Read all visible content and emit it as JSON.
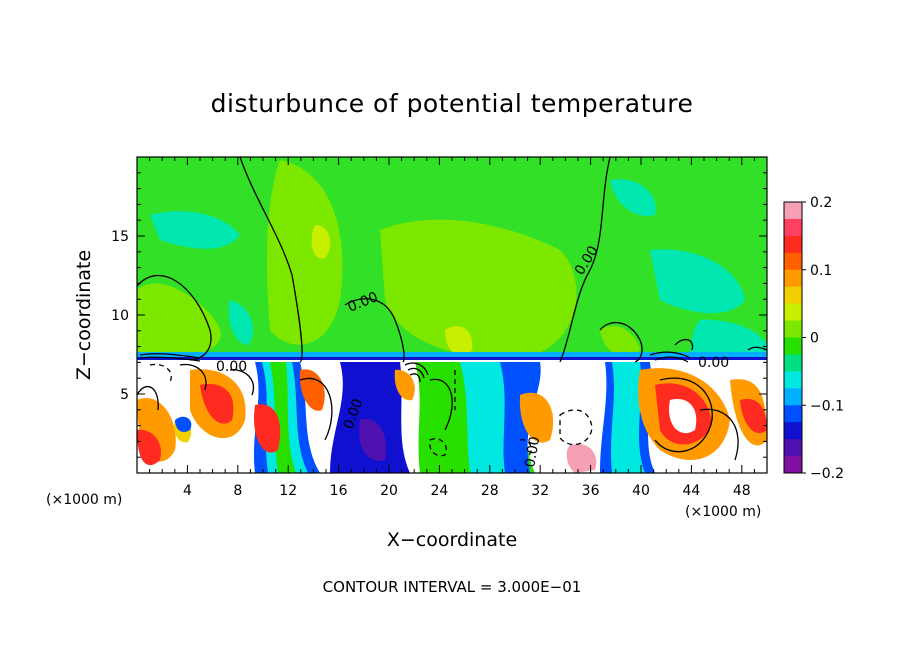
{
  "chart_data": {
    "type": "heatmap",
    "title": "disturbunce of potential temperature",
    "xlabel": "X−coordinate",
    "ylabel": "Z−coordinate",
    "x_unit_left": "(×1000 m)",
    "x_unit_right": "(×1000 m)",
    "xlim": [
      0,
      50
    ],
    "ylim": [
      0,
      20
    ],
    "x_ticks": [
      4,
      8,
      12,
      16,
      20,
      24,
      28,
      32,
      36,
      40,
      44,
      48
    ],
    "y_ticks": [
      5,
      10,
      15
    ],
    "colorbar": {
      "range": [
        -0.2,
        0.2
      ],
      "tick_labels": [
        "0.2",
        "0.1",
        "0",
        "−0.1",
        "−0.2"
      ],
      "tick_values": [
        0.2,
        0.1,
        0,
        -0.1,
        -0.2
      ],
      "colors": [
        "#f5a0b4",
        "#ff4060",
        "#ff2a20",
        "#ff6000",
        "#ff9a00",
        "#f2d000",
        "#c8ee00",
        "#7ce800",
        "#28e000",
        "#00e080",
        "#00e8e0",
        "#00b0ff",
        "#0050ff",
        "#1010d0",
        "#5010b0",
        "#8010a0"
      ]
    },
    "contour_interval_text": "CONTOUR INTERVAL = 3.000E−01",
    "contour_labels": [
      "0.00",
      "0.00",
      "0.00",
      "0.00",
      "0.00",
      "0.00"
    ],
    "grid": false
  }
}
